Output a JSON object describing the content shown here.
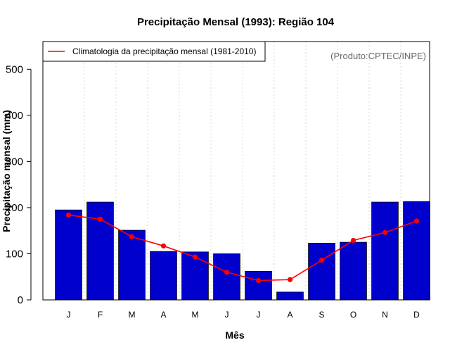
{
  "chart_data": {
    "type": "bar",
    "title": "Precipitação Mensal (1993): Região 104",
    "xlabel": "Mês",
    "ylabel": "Precipitação mensal (mm)",
    "ylim": [
      0,
      560
    ],
    "yticks": [
      0,
      100,
      200,
      300,
      400,
      500
    ],
    "categories": [
      "J",
      "F",
      "M",
      "A",
      "M",
      "J",
      "J",
      "A",
      "S",
      "O",
      "N",
      "D"
    ],
    "grid": true,
    "series": [
      {
        "name": "Precipitação mensal (1993)",
        "type": "bar",
        "color": "#0000cc",
        "values": [
          195,
          212,
          151,
          105,
          104,
          100,
          62,
          17,
          123,
          125,
          212,
          213
        ]
      },
      {
        "name": "Climatologia da precipitação mensal (1981-2010)",
        "type": "line",
        "color": "#ff0000",
        "values": [
          184,
          175,
          137,
          117,
          93,
          60,
          42,
          44,
          86,
          129,
          146,
          171
        ]
      }
    ],
    "legend": {
      "position": "top-left",
      "entries": [
        "Climatologia da precipitação mensal (1981-2010)"
      ]
    },
    "credit": "(Produto:CPTEC/INPE)"
  }
}
